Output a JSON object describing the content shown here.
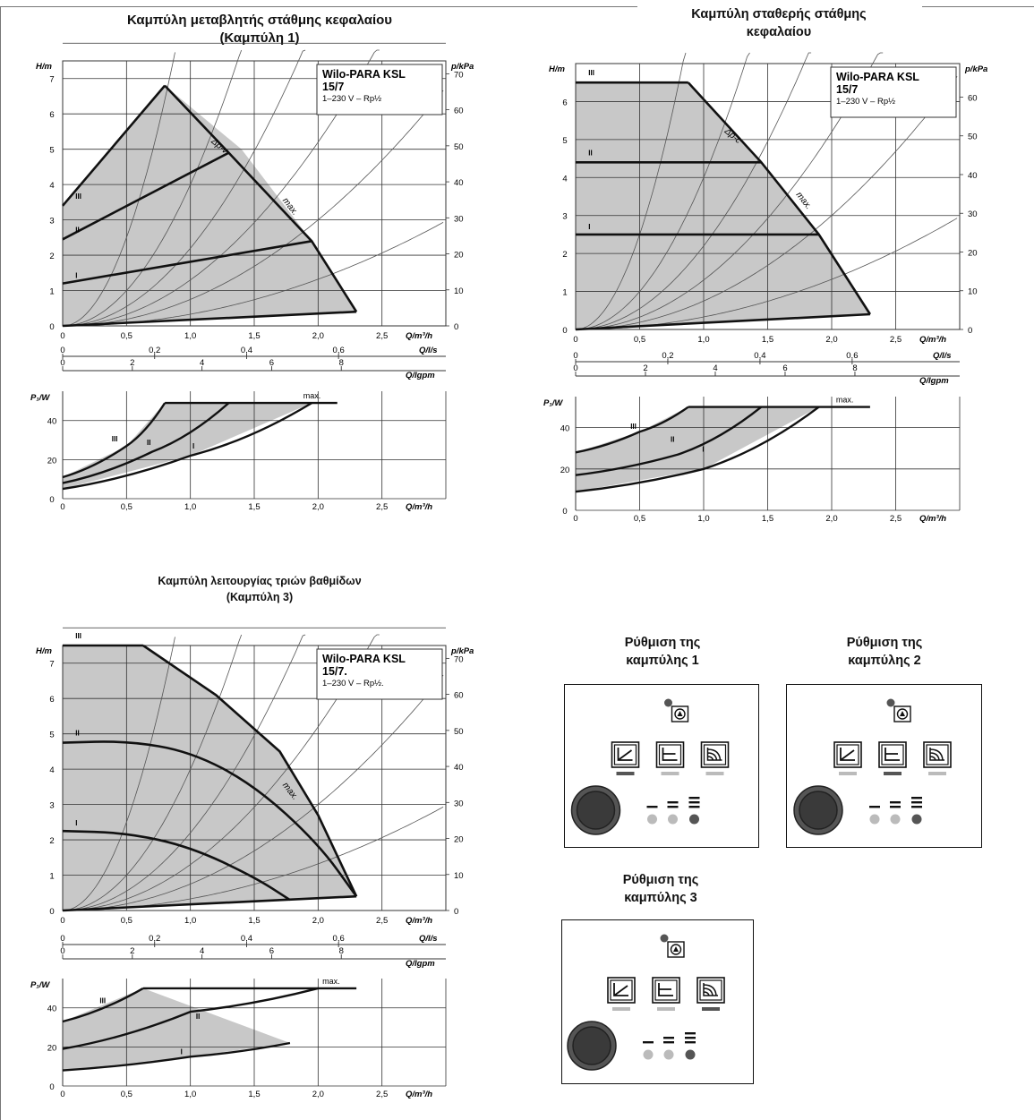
{
  "titles": {
    "curve1_line1": "Καμπύλη μεταβλητής στάθμης κεφαλαίου",
    "curve1_line2": "(Καμπύλη 1)",
    "curve2_line1": "Καμπύλη σταθερής στάθμης",
    "curve2_line2": "κεφαλαίου",
    "curve3_line1": "Καμπύλη λειτουργίας τριών βαθμίδων",
    "curve3_line2": "(Καμπύλη 3)"
  },
  "settings_panels": [
    {
      "title_line1": "Ρύθμιση της",
      "title_line2": "καμπύλης 1",
      "active_mode": 0,
      "active_speed": 2
    },
    {
      "title_line1": "Ρύθμιση της",
      "title_line2": "καμπύλης 2",
      "active_mode": 1,
      "active_speed": 2
    },
    {
      "title_line1": "Ρύθμιση της",
      "title_line2": "καμπύλης 3",
      "active_mode": 2,
      "active_speed": 2
    }
  ],
  "colors": {
    "fill": "#c8c8c8",
    "line": "#111111",
    "grid": "#333333",
    "thin": "#555555",
    "led_on": "#555555",
    "led_off": "#bbbbbb"
  },
  "charts": [
    {
      "id": "chart-curve1",
      "type": "line",
      "model": [
        "Wilo-PARA KSL",
        "15/7",
        "1–230 V – Rp½"
      ],
      "head": {
        "ylabel": "H/m",
        "rlabel": "p/kPa",
        "xlabel": "Q/m³/h",
        "xlim": [
          0,
          3
        ],
        "ylim": [
          0,
          7.5
        ],
        "xticks": [
          "0",
          "0,5",
          "1,0",
          "1,5",
          "2,0",
          "2,5"
        ],
        "yticks": [
          "0",
          "1",
          "2",
          "3",
          "4",
          "5",
          "6",
          "7"
        ],
        "rticks": [
          "0",
          "10",
          "20",
          "30",
          "40",
          "50",
          "60",
          "70"
        ]
      },
      "flow_axes": {
        "ls_label": "Q/l/s",
        "ls_ticks": [
          "0",
          "0,2",
          "0,4",
          "0,6"
        ],
        "gpm_label": "Q/lgpm",
        "gpm_ticks": [
          "0",
          "2",
          "4",
          "6",
          "8"
        ]
      },
      "envelope": [
        [
          0,
          0
        ],
        [
          0,
          3.4
        ],
        [
          0.8,
          6.8
        ],
        [
          1.4,
          5.0
        ],
        [
          1.95,
          2.4
        ],
        [
          2.3,
          0.4
        ],
        [
          0,
          0
        ]
      ],
      "settings": [
        {
          "name": "I",
          "points": [
            [
              0,
              1.2
            ],
            [
              1.95,
              2.4
            ]
          ]
        },
        {
          "name": "II",
          "points": [
            [
              0,
              2.45
            ],
            [
              1.3,
              4.9
            ]
          ]
        },
        {
          "name": "III",
          "points": [
            [
              0,
              3.4
            ],
            [
              0.8,
              6.8
            ]
          ]
        }
      ],
      "max_curve": {
        "name": "max.",
        "points": [
          [
            0.8,
            6.8
          ],
          [
            1.3,
            4.9
          ],
          [
            1.95,
            2.4
          ],
          [
            2.3,
            0.4
          ]
        ]
      },
      "dp_label": "Δp-v",
      "power": {
        "ylabel": "P₁/W",
        "xlabel": "Q/m³/h",
        "ylim": [
          0,
          55
        ],
        "yticks": [
          "0",
          "20",
          "40"
        ],
        "xticks": [
          "0",
          "0,5",
          "1,0",
          "1,5",
          "2,0",
          "2,5"
        ],
        "series": [
          {
            "name": "III",
            "points": [
              [
                0,
                11
              ],
              [
                0.5,
                27
              ],
              [
                0.8,
                49
              ]
            ]
          },
          {
            "name": "II",
            "points": [
              [
                0,
                8
              ],
              [
                0.7,
                24
              ],
              [
                1.3,
                49
              ]
            ]
          },
          {
            "name": "I",
            "points": [
              [
                0,
                5
              ],
              [
                1.0,
                22
              ],
              [
                1.95,
                49
              ]
            ]
          }
        ],
        "max_line": {
          "name": "max.",
          "points": [
            [
              0.8,
              49
            ],
            [
              2.15,
              49
            ]
          ]
        }
      }
    },
    {
      "id": "chart-curve2",
      "type": "line",
      "model": [
        "Wilo-PARA KSL",
        "15/7",
        "1–230 V – Rp½"
      ],
      "head": {
        "ylabel": "H/m",
        "rlabel": "p/kPa",
        "xlabel": "Q/m³/h",
        "xlim": [
          0,
          3
        ],
        "ylim": [
          0,
          7.0
        ],
        "xticks": [
          "0",
          "0,5",
          "1,0",
          "1,5",
          "2,0",
          "2,5"
        ],
        "yticks": [
          "0",
          "1",
          "2",
          "3",
          "4",
          "5",
          "6"
        ],
        "rticks": [
          "0",
          "10",
          "20",
          "30",
          "40",
          "50",
          "60"
        ]
      },
      "flow_axes": {
        "ls_label": "Q/l/s",
        "ls_ticks": [
          "0",
          "0,2",
          "0,4",
          "0,6"
        ],
        "gpm_label": "Q/lgpm",
        "gpm_ticks": [
          "0",
          "2",
          "4",
          "6",
          "8"
        ]
      },
      "envelope": [
        [
          0,
          0
        ],
        [
          0,
          6.5
        ],
        [
          0.88,
          6.5
        ],
        [
          1.45,
          4.4
        ],
        [
          1.9,
          2.5
        ],
        [
          2.3,
          0.4
        ],
        [
          0,
          0
        ]
      ],
      "settings": [
        {
          "name": "I",
          "points": [
            [
              0,
              2.5
            ],
            [
              1.9,
              2.5
            ]
          ]
        },
        {
          "name": "II",
          "points": [
            [
              0,
              4.4
            ],
            [
              1.45,
              4.4
            ]
          ]
        },
        {
          "name": "III",
          "points": [
            [
              0,
              6.5
            ],
            [
              0.88,
              6.5
            ]
          ]
        }
      ],
      "max_curve": {
        "name": "max.",
        "points": [
          [
            0.88,
            6.5
          ],
          [
            1.45,
            4.4
          ],
          [
            1.9,
            2.5
          ],
          [
            2.3,
            0.4
          ]
        ]
      },
      "dp_label": "Δp-c",
      "power": {
        "ylabel": "P₁/W",
        "xlabel": "Q/m³/h",
        "ylim": [
          0,
          55
        ],
        "yticks": [
          "0",
          "20",
          "40"
        ],
        "xticks": [
          "0",
          "0,5",
          "1,0",
          "1,5",
          "2,0",
          "2,5"
        ],
        "series": [
          {
            "name": "III",
            "points": [
              [
                0,
                28
              ],
              [
                0.5,
                38
              ],
              [
                0.88,
                50
              ]
            ]
          },
          {
            "name": "II",
            "points": [
              [
                0,
                17
              ],
              [
                0.8,
                27
              ],
              [
                1.45,
                50
              ]
            ]
          },
          {
            "name": "I",
            "points": [
              [
                0,
                9
              ],
              [
                1.0,
                20
              ],
              [
                1.9,
                50
              ]
            ]
          }
        ],
        "max_line": {
          "name": "max.",
          "points": [
            [
              0.88,
              50
            ],
            [
              2.3,
              50
            ]
          ]
        }
      }
    },
    {
      "id": "chart-curve3",
      "type": "line",
      "model": [
        "Wilo-PARA KSL",
        "15/7.",
        "1–230 V – Rp½."
      ],
      "head": {
        "ylabel": "H/m",
        "rlabel": "p/kPa",
        "xlabel": "Q/m³/h",
        "xlim": [
          0,
          3
        ],
        "ylim": [
          0,
          7.5
        ],
        "xticks": [
          "0",
          "0,5",
          "1,0",
          "1,5",
          "2,0",
          "2,5"
        ],
        "yticks": [
          "0",
          "1",
          "2",
          "3",
          "4",
          "5",
          "6",
          "7"
        ],
        "rticks": [
          "0",
          "10",
          "20",
          "30",
          "40",
          "50",
          "60",
          "70"
        ]
      },
      "flow_axes": {
        "ls_label": "Q/l/s",
        "ls_ticks": [
          "0",
          "0,2",
          "0,4",
          "0,6"
        ],
        "gpm_label": "Q/lgpm",
        "gpm_ticks": [
          "0",
          "2",
          "4",
          "6",
          "8"
        ]
      },
      "envelope": [
        [
          0,
          0
        ],
        [
          0,
          7.5
        ],
        [
          0.63,
          7.5
        ],
        [
          1.2,
          6.1
        ],
        [
          1.7,
          4.5
        ],
        [
          2.0,
          2.7
        ],
        [
          2.3,
          0.4
        ],
        [
          2.3,
          0.4
        ],
        [
          1.0,
          0.2
        ],
        [
          0,
          0
        ]
      ],
      "settings": [
        {
          "name": "I",
          "points": [
            [
              0,
              2.25
            ],
            [
              0.5,
              2.2
            ],
            [
              1.0,
              1.8
            ],
            [
              1.5,
              0.95
            ],
            [
              1.78,
              0.3
            ]
          ]
        },
        {
          "name": "II",
          "points": [
            [
              0,
              4.75
            ],
            [
              0.5,
              4.8
            ],
            [
              1.0,
              4.5
            ],
            [
              1.5,
              3.55
            ],
            [
              2.0,
              1.9
            ],
            [
              2.3,
              0.4
            ]
          ]
        },
        {
          "name": "III",
          "points": [
            [
              0,
              7.5
            ],
            [
              0.63,
              7.5
            ]
          ]
        }
      ],
      "max_curve": {
        "name": "max.",
        "points": [
          [
            0.63,
            7.5
          ],
          [
            1.2,
            6.1
          ],
          [
            1.7,
            4.5
          ],
          [
            2.0,
            2.7
          ],
          [
            2.3,
            0.4
          ]
        ]
      },
      "dp_label": "",
      "power": {
        "ylabel": "P₁/W",
        "xlabel": "Q/m³/h",
        "ylim": [
          0,
          55
        ],
        "yticks": [
          "0",
          "20",
          "40"
        ],
        "xticks": [
          "0",
          "0,5",
          "1,0",
          "1,5",
          "2,0",
          "2,5"
        ],
        "series": [
          {
            "name": "III",
            "points": [
              [
                0,
                33
              ],
              [
                0.63,
                50
              ]
            ]
          },
          {
            "name": "II",
            "points": [
              [
                0,
                19
              ],
              [
                1.0,
                38
              ],
              [
                2.0,
                50
              ]
            ]
          },
          {
            "name": "I",
            "points": [
              [
                0,
                8
              ],
              [
                1.0,
                15
              ],
              [
                1.78,
                22
              ]
            ]
          }
        ],
        "max_line": {
          "name": "max.",
          "points": [
            [
              0.63,
              50
            ],
            [
              2.3,
              50
            ]
          ]
        }
      }
    }
  ]
}
